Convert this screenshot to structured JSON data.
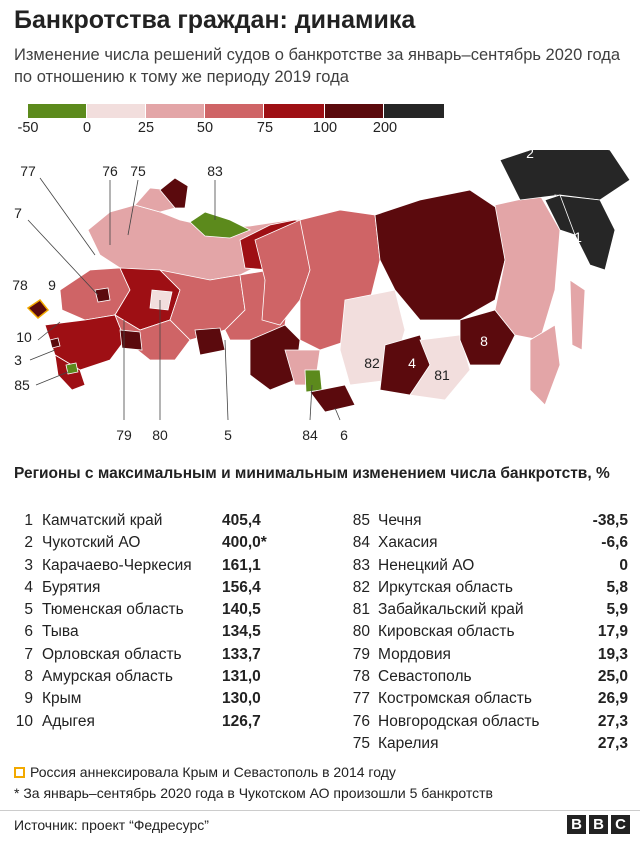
{
  "title": "Банкротства граждан: динамика",
  "subtitle": "Изменение числа решений судов о банкротстве за январь–сентябрь 2020 года по отношению к тому же периоду 2019 года",
  "legend": {
    "ticks": [
      "-50",
      "0",
      "25",
      "50",
      "75",
      "100",
      "200"
    ],
    "colors": [
      "#5c8a1c",
      "#f2dedd",
      "#e3a5a7",
      "#cf6466",
      "#9e0f14",
      "#5b0a0d",
      "#262626"
    ]
  },
  "map": {
    "labels": {
      "l77": "77",
      "l76": "76",
      "l75": "75",
      "l83": "83",
      "l7": "7",
      "l78": "78",
      "l9": "9",
      "l10": "10",
      "l3": "3",
      "l85": "85",
      "l79": "79",
      "l80": "80",
      "l5": "5",
      "l84": "84",
      "l6": "6",
      "l82": "82",
      "l4": "4",
      "l81": "81",
      "l8": "8",
      "l2": "2",
      "l1": "1"
    }
  },
  "section_title": "Регионы с максимальным и минимальным изменением числа банкротств, %",
  "top_regions": [
    {
      "rank": "1",
      "name": "Камчатский край",
      "value": "405,4"
    },
    {
      "rank": "2",
      "name": "Чукотский АО",
      "value": "400,0*"
    },
    {
      "rank": "3",
      "name": "Карачаево-Черкесия",
      "value": "161,1"
    },
    {
      "rank": "4",
      "name": "Бурятия",
      "value": "156,4"
    },
    {
      "rank": "5",
      "name": "Тюменская область",
      "value": "140,5"
    },
    {
      "rank": "6",
      "name": "Тыва",
      "value": "134,5"
    },
    {
      "rank": "7",
      "name": "Орловская область",
      "value": "133,7"
    },
    {
      "rank": "8",
      "name": "Амурская область",
      "value": "131,0"
    },
    {
      "rank": "9",
      "name": "Крым",
      "value": "130,0"
    },
    {
      "rank": "10",
      "name": "Адыгея",
      "value": "126,7"
    }
  ],
  "bottom_regions": [
    {
      "rank": "85",
      "name": "Чечня",
      "value": "-38,5"
    },
    {
      "rank": "84",
      "name": "Хакасия",
      "value": "-6,6"
    },
    {
      "rank": "83",
      "name": "Ненецкий АО",
      "value": "0"
    },
    {
      "rank": "82",
      "name": "Иркутская область",
      "value": "5,8"
    },
    {
      "rank": "81",
      "name": "Забайкальский край",
      "value": "5,9"
    },
    {
      "rank": "80",
      "name": "Кировская область",
      "value": "17,9"
    },
    {
      "rank": "79",
      "name": "Мордовия",
      "value": "19,3"
    },
    {
      "rank": "78",
      "name": "Севастополь",
      "value": "25,0"
    },
    {
      "rank": "77",
      "name": "Костромская область",
      "value": "26,9"
    },
    {
      "rank": "76",
      "name": "Новгородская область",
      "value": "27,3"
    },
    {
      "rank": "75",
      "name": "Карелия",
      "value": "27,3"
    }
  ],
  "notes": {
    "crimea": "Россия аннексировала Крым и Севастополь в 2014 году",
    "chukotka": "* За январь–сентябрь 2020 года в Чукотском АО произошли 5 банкротств"
  },
  "source": "Источник: проект “Федресурс”",
  "logo": [
    "B",
    "B",
    "C"
  ]
}
